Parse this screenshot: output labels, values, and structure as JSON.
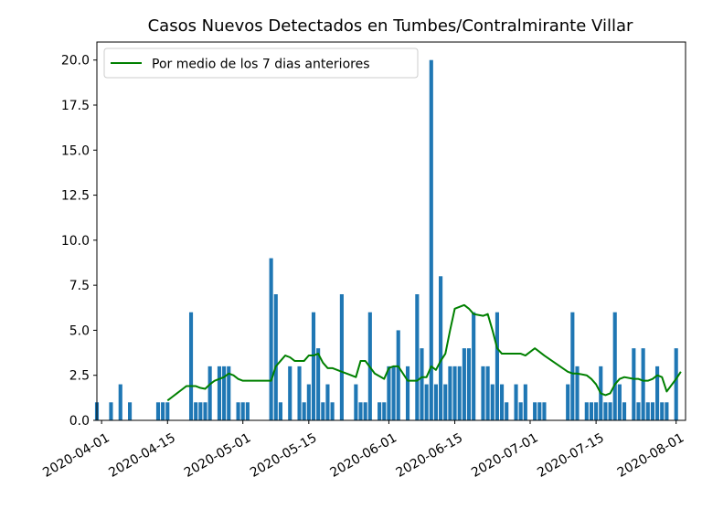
{
  "chart_data": {
    "type": "bar",
    "title": "Casos Nuevos Detectados en Tumbes/Contralmirante Villar",
    "xlabel": "",
    "ylabel": "",
    "ylim": [
      0,
      21
    ],
    "xlim": [
      "2020-03-31",
      "2020-08-03"
    ],
    "yticks": [
      0,
      2.5,
      5,
      7.5,
      10,
      12.5,
      15,
      17.5,
      20
    ],
    "ytick_labels": [
      "0.0",
      "2.5",
      "5.0",
      "7.5",
      "10.0",
      "12.5",
      "15.0",
      "17.5",
      "20.0"
    ],
    "xticks": [
      "2020-04-01",
      "2020-04-15",
      "2020-05-01",
      "2020-05-15",
      "2020-06-01",
      "2020-06-15",
      "2020-07-01",
      "2020-07-15",
      "2020-08-01"
    ],
    "legend_position": "top-left",
    "grid": false,
    "bar_color": "#1f77b4",
    "line_color": "#008000",
    "bars": {
      "name": "",
      "dates": [
        "2020-03-31",
        "2020-04-03",
        "2020-04-05",
        "2020-04-07",
        "2020-04-13",
        "2020-04-14",
        "2020-04-15",
        "2020-04-20",
        "2020-04-21",
        "2020-04-22",
        "2020-04-23",
        "2020-04-24",
        "2020-04-26",
        "2020-04-27",
        "2020-04-28",
        "2020-04-30",
        "2020-05-01",
        "2020-05-02",
        "2020-05-07",
        "2020-05-08",
        "2020-05-09",
        "2020-05-11",
        "2020-05-13",
        "2020-05-14",
        "2020-05-15",
        "2020-05-16",
        "2020-05-17",
        "2020-05-18",
        "2020-05-19",
        "2020-05-20",
        "2020-05-22",
        "2020-05-25",
        "2020-05-26",
        "2020-05-27",
        "2020-05-28",
        "2020-05-30",
        "2020-05-31",
        "2020-06-01",
        "2020-06-02",
        "2020-06-03",
        "2020-06-05",
        "2020-06-07",
        "2020-06-08",
        "2020-06-09",
        "2020-06-10",
        "2020-06-11",
        "2020-06-12",
        "2020-06-13",
        "2020-06-14",
        "2020-06-15",
        "2020-06-16",
        "2020-06-17",
        "2020-06-18",
        "2020-06-19",
        "2020-06-21",
        "2020-06-22",
        "2020-06-23",
        "2020-06-24",
        "2020-06-25",
        "2020-06-26",
        "2020-06-28",
        "2020-06-29",
        "2020-06-30",
        "2020-07-02",
        "2020-07-03",
        "2020-07-04",
        "2020-07-09",
        "2020-07-10",
        "2020-07-11",
        "2020-07-13",
        "2020-07-14",
        "2020-07-15",
        "2020-07-16",
        "2020-07-17",
        "2020-07-18",
        "2020-07-19",
        "2020-07-20",
        "2020-07-21",
        "2020-07-23",
        "2020-07-24",
        "2020-07-25",
        "2020-07-26",
        "2020-07-27",
        "2020-07-28",
        "2020-07-29",
        "2020-07-30",
        "2020-08-01"
      ],
      "values": [
        1,
        1,
        2,
        1,
        1,
        1,
        1,
        6,
        1,
        1,
        1,
        3,
        3,
        3,
        3,
        1,
        1,
        1,
        9,
        7,
        1,
        3,
        3,
        1,
        2,
        6,
        4,
        1,
        2,
        1,
        7,
        2,
        1,
        1,
        6,
        1,
        1,
        3,
        3,
        5,
        3,
        7,
        4,
        2,
        20,
        2,
        8,
        2,
        3,
        3,
        3,
        4,
        4,
        6,
        3,
        3,
        2,
        6,
        2,
        1,
        2,
        1,
        2,
        1,
        1,
        1,
        2,
        6,
        3,
        1,
        1,
        1,
        3,
        1,
        1,
        6,
        2,
        1,
        4,
        1,
        4,
        1,
        1,
        3,
        1,
        1,
        4
      ]
    },
    "series": [
      {
        "name": "Por medio de los 7 dias anteriores",
        "dates": [
          "2020-04-15",
          "2020-04-16",
          "2020-04-17",
          "2020-04-18",
          "2020-04-19",
          "2020-04-20",
          "2020-04-21",
          "2020-04-22",
          "2020-04-23",
          "2020-04-24",
          "2020-04-25",
          "2020-04-26",
          "2020-04-27",
          "2020-04-28",
          "2020-04-29",
          "2020-04-30",
          "2020-05-01",
          "2020-05-02",
          "2020-05-07",
          "2020-05-08",
          "2020-05-09",
          "2020-05-10",
          "2020-05-11",
          "2020-05-12",
          "2020-05-13",
          "2020-05-14",
          "2020-05-15",
          "2020-05-16",
          "2020-05-17",
          "2020-05-18",
          "2020-05-19",
          "2020-05-20",
          "2020-05-22",
          "2020-05-24",
          "2020-05-25",
          "2020-05-26",
          "2020-05-27",
          "2020-05-29",
          "2020-05-31",
          "2020-06-01",
          "2020-06-02",
          "2020-06-03",
          "2020-06-05",
          "2020-06-07",
          "2020-06-08",
          "2020-06-09",
          "2020-06-10",
          "2020-06-11",
          "2020-06-12",
          "2020-06-13",
          "2020-06-14",
          "2020-06-15",
          "2020-06-16",
          "2020-06-17",
          "2020-06-18",
          "2020-06-19",
          "2020-06-21",
          "2020-06-22",
          "2020-06-23",
          "2020-06-24",
          "2020-06-25",
          "2020-06-26",
          "2020-06-28",
          "2020-06-29",
          "2020-06-30",
          "2020-07-02",
          "2020-07-03",
          "2020-07-04",
          "2020-07-09",
          "2020-07-10",
          "2020-07-11",
          "2020-07-13",
          "2020-07-14",
          "2020-07-15",
          "2020-07-16",
          "2020-07-17",
          "2020-07-18",
          "2020-07-19",
          "2020-07-20",
          "2020-07-21",
          "2020-07-23",
          "2020-07-24",
          "2020-07-25",
          "2020-07-26",
          "2020-07-27",
          "2020-07-28",
          "2020-07-29",
          "2020-07-30",
          "2020-08-01",
          "2020-08-02"
        ],
        "values": [
          1.1,
          1.3,
          1.5,
          1.7,
          1.9,
          1.9,
          1.9,
          1.8,
          1.75,
          2.0,
          2.2,
          2.3,
          2.4,
          2.6,
          2.5,
          2.3,
          2.2,
          2.2,
          2.2,
          3.0,
          3.3,
          3.6,
          3.5,
          3.3,
          3.3,
          3.3,
          3.6,
          3.6,
          3.7,
          3.2,
          2.9,
          2.9,
          2.7,
          2.5,
          2.4,
          3.3,
          3.3,
          2.6,
          2.3,
          2.9,
          3.0,
          3.0,
          2.2,
          2.2,
          2.4,
          2.4,
          3.0,
          2.8,
          3.3,
          3.7,
          5.0,
          6.2,
          6.3,
          6.4,
          6.2,
          5.9,
          5.8,
          5.9,
          5.0,
          4.0,
          3.7,
          3.7,
          3.7,
          3.7,
          3.6,
          4.0,
          3.8,
          3.6,
          2.7,
          2.6,
          2.6,
          2.5,
          2.3,
          2.0,
          1.5,
          1.4,
          1.5,
          2.0,
          2.3,
          2.4,
          2.3,
          2.3,
          2.2,
          2.2,
          2.3,
          2.5,
          2.4,
          1.6,
          2.3,
          2.7
        ]
      }
    ]
  }
}
